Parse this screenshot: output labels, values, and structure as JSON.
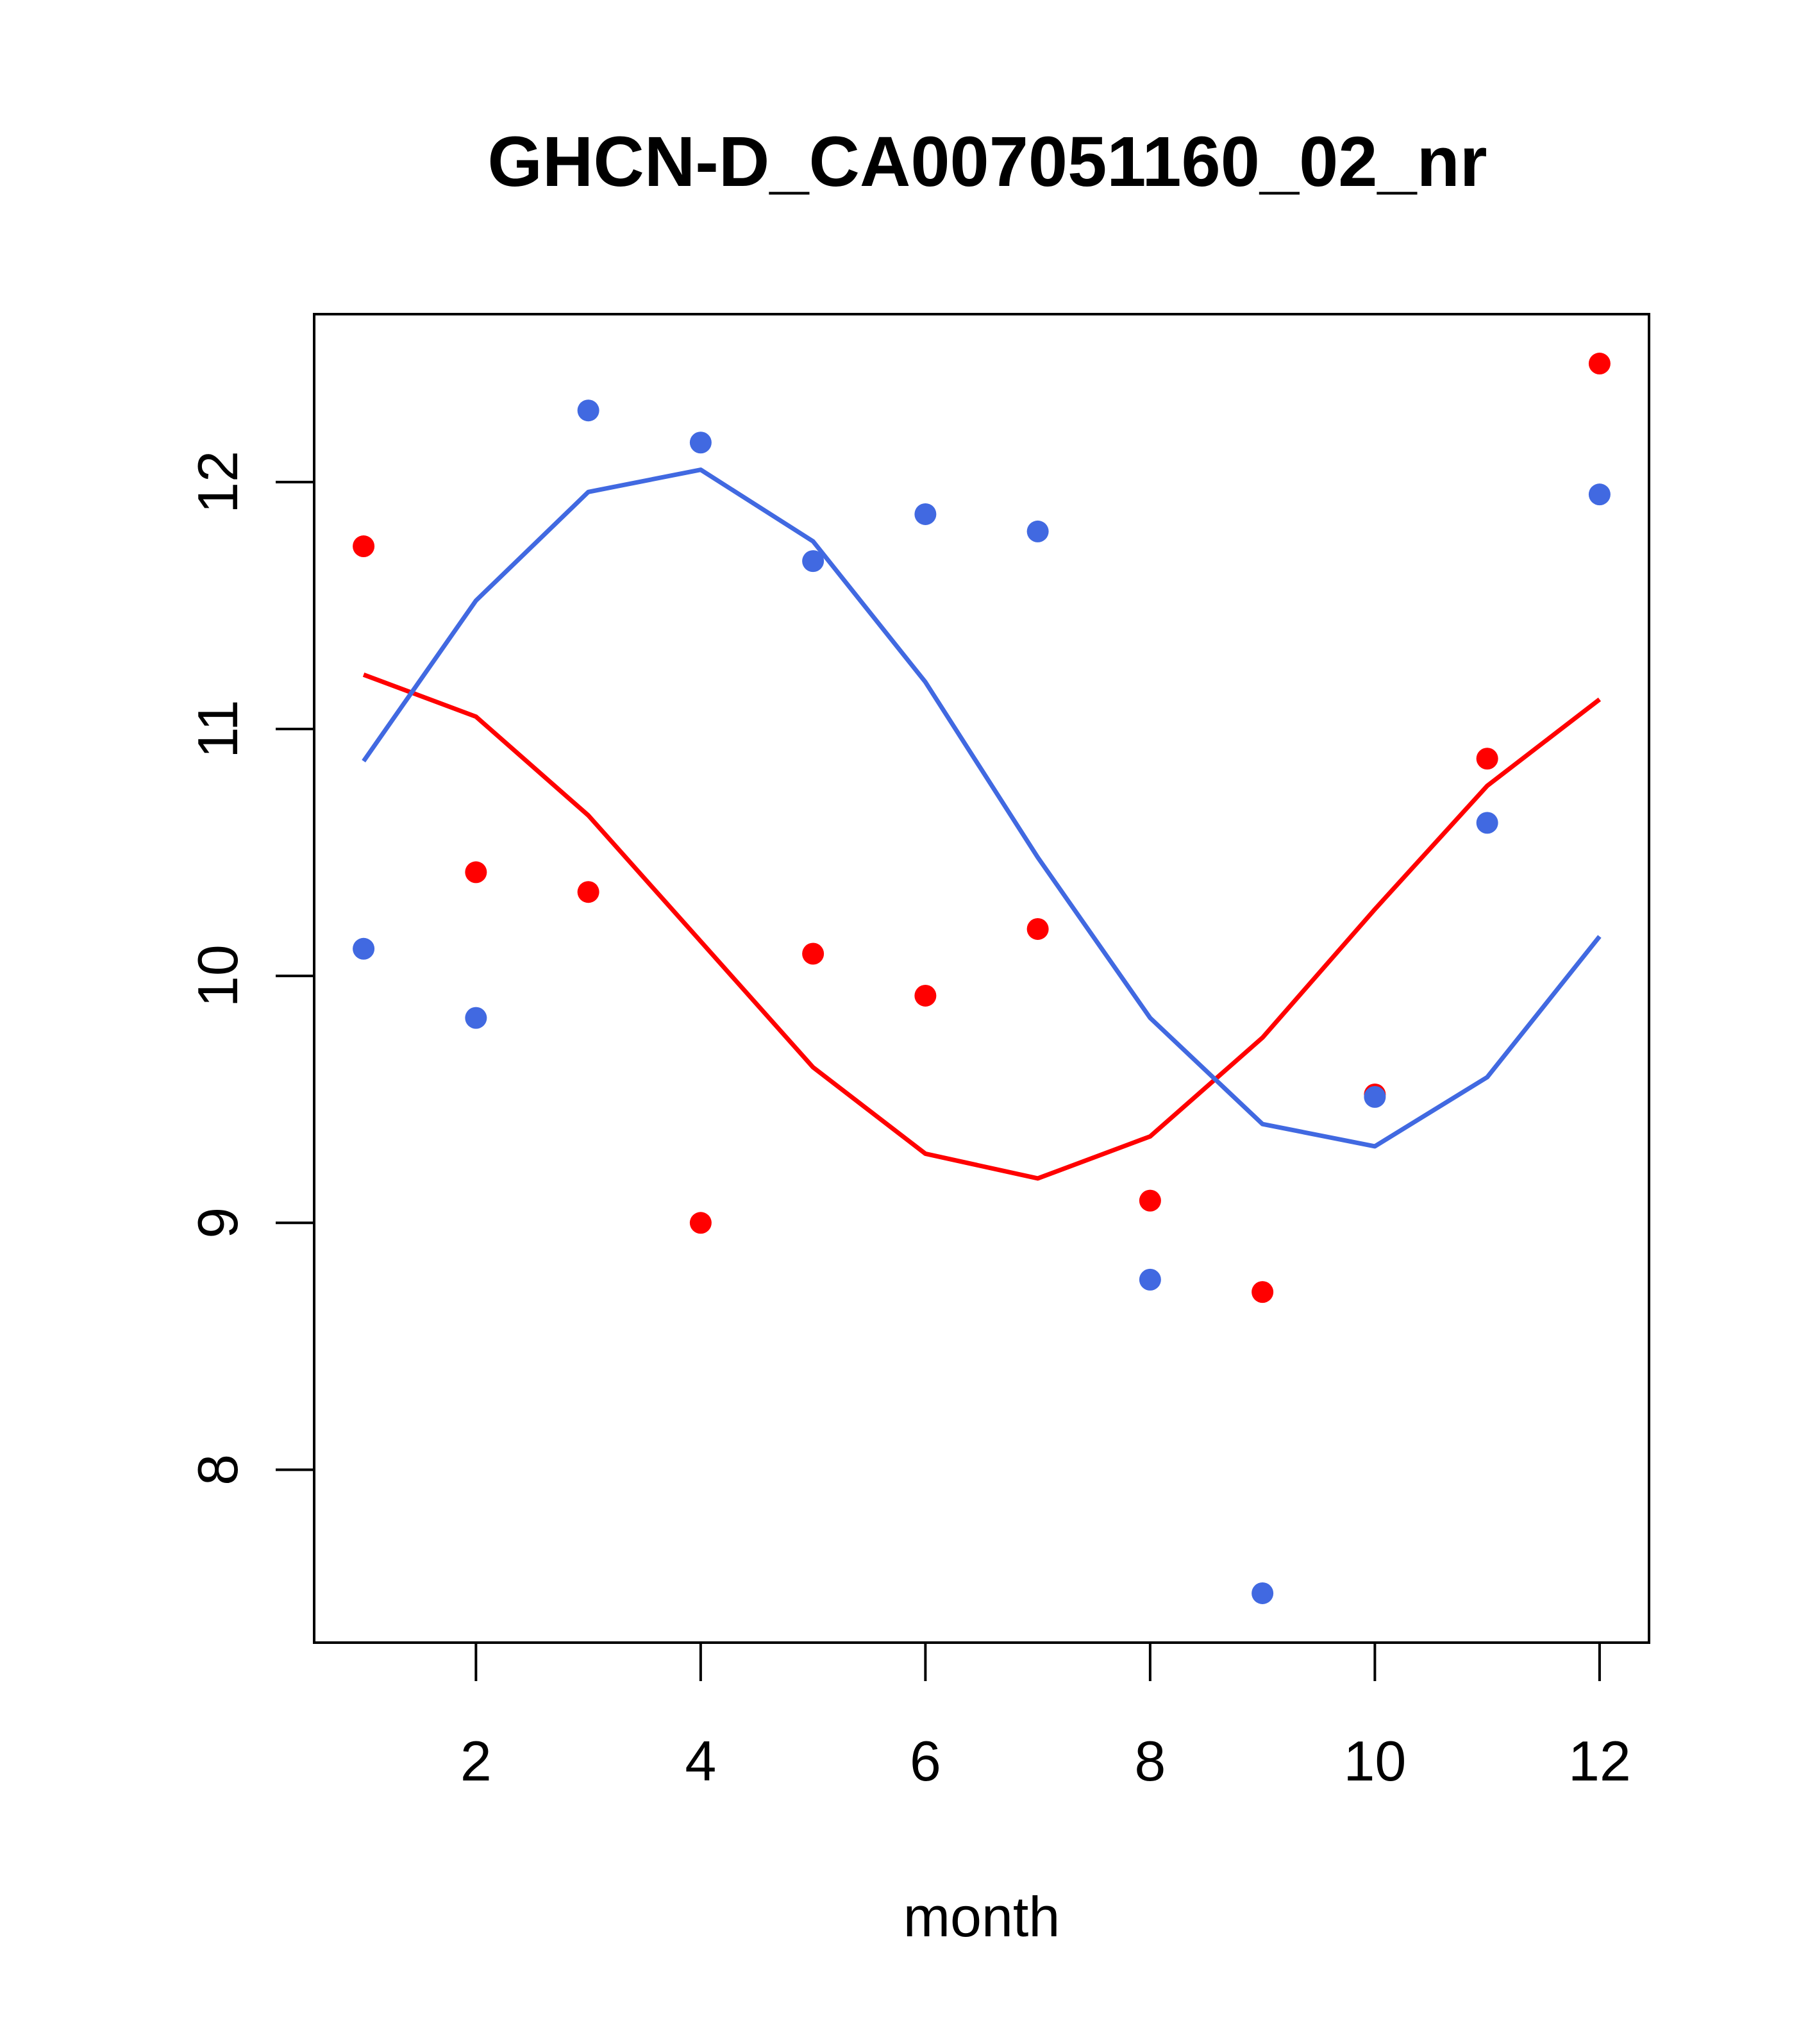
{
  "chart_data": {
    "type": "scatter",
    "title": "GHCN-D_CA007051160_02_nr",
    "xlabel": "month",
    "ylabel": "",
    "xlim": [
      0.56,
      12.44
    ],
    "ylim": [
      7.3,
      12.68
    ],
    "xticks": [
      2,
      4,
      6,
      8,
      10,
      12
    ],
    "yticks": [
      8,
      9,
      10,
      11,
      12
    ],
    "grid": false,
    "colors": {
      "red": "#ff0000",
      "blue": "#4169e1"
    },
    "series": [
      {
        "color": "#ff0000",
        "points": {
          "x": [
            1,
            2,
            3,
            4,
            5,
            6,
            7,
            8,
            9,
            10,
            11,
            12
          ],
          "y": [
            11.74,
            10.42,
            10.34,
            9.0,
            10.09,
            9.92,
            10.19,
            9.09,
            8.72,
            9.52,
            10.88,
            12.48
          ]
        },
        "line": {
          "x": [
            1,
            2,
            3,
            4,
            5,
            6,
            7,
            8,
            9,
            10,
            11,
            12
          ],
          "y": [
            11.22,
            11.05,
            10.65,
            10.14,
            9.63,
            9.28,
            9.18,
            9.35,
            9.75,
            10.27,
            10.77,
            11.12
          ]
        }
      },
      {
        "color": "#4169e1",
        "points": {
          "x": [
            1,
            2,
            3,
            4,
            5,
            6,
            7,
            8,
            9,
            10,
            11,
            12
          ],
          "y": [
            10.11,
            9.83,
            12.29,
            12.16,
            11.68,
            11.87,
            11.8,
            8.77,
            7.5,
            9.51,
            10.62,
            11.95
          ]
        },
        "line": {
          "x": [
            1,
            2,
            3,
            4,
            5,
            6,
            7,
            8,
            9,
            10,
            11,
            12
          ],
          "y": [
            10.87,
            11.52,
            11.96,
            12.05,
            11.76,
            11.19,
            10.48,
            9.83,
            9.4,
            9.31,
            9.59,
            10.16
          ]
        }
      }
    ]
  }
}
